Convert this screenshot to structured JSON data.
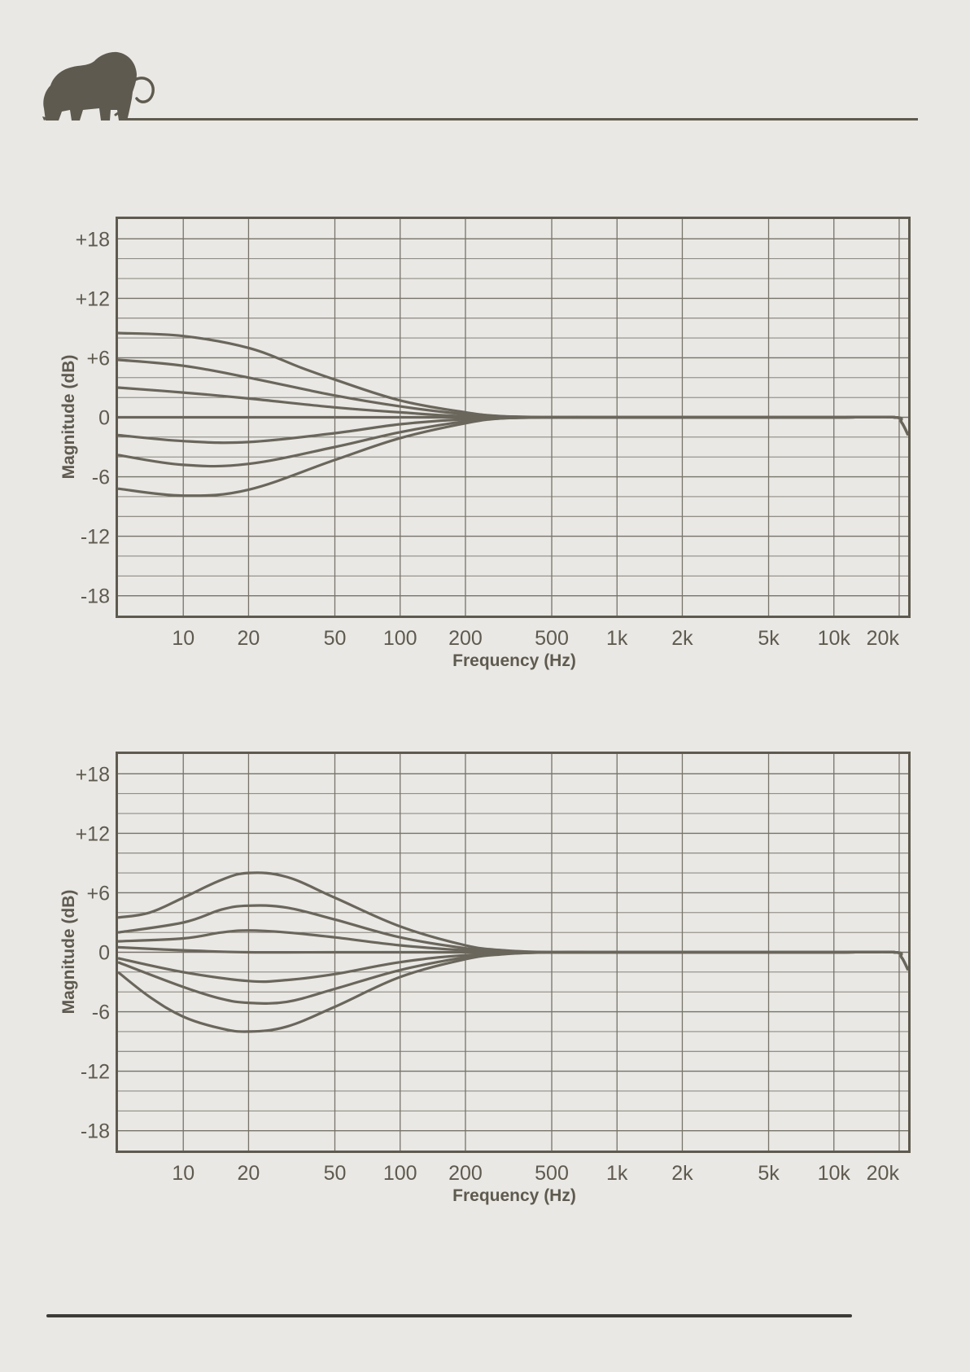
{
  "colors": {
    "ink": "#5f5a4f",
    "paper": "#e9e8e4",
    "grid": "#77736a",
    "curve": "#6a665c"
  },
  "logo": {
    "icon": "mammoth-icon"
  },
  "chart_data": [
    {
      "type": "line",
      "xscale": "log",
      "xlabel": "Frequency (Hz)",
      "ylabel": "Magnitude (dB)",
      "xlim": [
        5,
        22000
      ],
      "ylim": [
        -20,
        20
      ],
      "xticks": [
        10,
        20,
        50,
        100,
        200,
        500,
        1000,
        2000,
        5000,
        10000,
        20000
      ],
      "xtick_labels": [
        "10",
        "20",
        "50",
        "100",
        "200",
        "500",
        "1k",
        "2k",
        "5k",
        "10k",
        "20k"
      ],
      "yticks": [
        18,
        12,
        6,
        0,
        -6,
        -12,
        -18
      ],
      "ytick_labels": [
        "+18",
        "+12",
        "+6",
        "0",
        "-6",
        "-12",
        "-18"
      ],
      "grid": true,
      "series": [
        {
          "x": [
            5,
            10,
            20,
            35,
            50,
            100,
            200,
            300,
            500,
            1000,
            10000,
            19000,
            20500,
            22000
          ],
          "values": [
            8.5,
            8.2,
            7.0,
            5.0,
            3.8,
            1.7,
            0.5,
            0.1,
            0,
            0,
            0,
            0,
            -0.5,
            -1.8
          ]
        },
        {
          "x": [
            5,
            10,
            20,
            50,
            100,
            200,
            300,
            500,
            1000,
            10000,
            19000,
            20500,
            22000
          ],
          "values": [
            5.8,
            5.2,
            4.0,
            2.2,
            1.1,
            0.3,
            0.1,
            0,
            0,
            0,
            0,
            -0.5,
            -1.8
          ]
        },
        {
          "x": [
            5,
            10,
            20,
            50,
            100,
            200,
            500,
            1000,
            10000,
            19000,
            20500,
            22000
          ],
          "values": [
            3.0,
            2.5,
            1.9,
            1.0,
            0.5,
            0.1,
            0,
            0,
            0,
            0,
            -0.5,
            -1.8
          ]
        },
        {
          "x": [
            5,
            1000,
            10000,
            19000,
            20500,
            22000
          ],
          "values": [
            0,
            0,
            0,
            0,
            -0.5,
            -1.8
          ]
        },
        {
          "x": [
            5,
            10,
            20,
            50,
            100,
            200,
            500,
            1000,
            10000,
            19000,
            20500,
            22000
          ],
          "values": [
            -1.8,
            -2.4,
            -2.5,
            -1.6,
            -0.7,
            -0.2,
            0,
            0,
            0,
            0,
            -0.5,
            -1.8
          ]
        },
        {
          "x": [
            5,
            10,
            20,
            50,
            100,
            200,
            300,
            500,
            1000,
            10000,
            19000,
            20500,
            22000
          ],
          "values": [
            -3.8,
            -4.8,
            -4.7,
            -3.0,
            -1.5,
            -0.4,
            -0.1,
            0,
            0,
            0,
            0,
            -0.5,
            -1.8
          ]
        },
        {
          "x": [
            5,
            10,
            20,
            50,
            100,
            200,
            300,
            500,
            1000,
            10000,
            19000,
            20500,
            22000
          ],
          "values": [
            -7.2,
            -7.9,
            -7.3,
            -4.3,
            -2.1,
            -0.6,
            -0.1,
            0,
            0,
            0,
            0,
            -0.5,
            -1.8
          ]
        }
      ]
    },
    {
      "type": "line",
      "xscale": "log",
      "xlabel": "Frequency (Hz)",
      "ylabel": "Magnitude (dB)",
      "xlim": [
        5,
        22000
      ],
      "ylim": [
        -20,
        20
      ],
      "xticks": [
        10,
        20,
        50,
        100,
        200,
        500,
        1000,
        2000,
        5000,
        10000,
        20000
      ],
      "xtick_labels": [
        "10",
        "20",
        "50",
        "100",
        "200",
        "500",
        "1k",
        "2k",
        "5k",
        "10k",
        "20k"
      ],
      "yticks": [
        18,
        12,
        6,
        0,
        -6,
        -12,
        -18
      ],
      "ytick_labels": [
        "+18",
        "+12",
        "+6",
        "0",
        "-6",
        "-12",
        "-18"
      ],
      "grid": true,
      "series": [
        {
          "x": [
            5,
            7,
            10,
            15,
            20,
            30,
            50,
            100,
            200,
            300,
            500,
            1000,
            10000,
            19000,
            20500,
            22000
          ],
          "values": [
            3.5,
            4.0,
            5.5,
            7.3,
            8.0,
            7.6,
            5.5,
            2.6,
            0.7,
            0.2,
            0,
            0,
            0,
            0,
            -0.5,
            -1.8
          ]
        },
        {
          "x": [
            5,
            10,
            15,
            20,
            30,
            50,
            100,
            200,
            300,
            500,
            1000,
            10000,
            19000,
            20500,
            22000
          ],
          "values": [
            2.0,
            3.0,
            4.3,
            4.7,
            4.5,
            3.3,
            1.5,
            0.4,
            0.1,
            0,
            0,
            0,
            0,
            -0.5,
            -1.8
          ]
        },
        {
          "x": [
            5,
            10,
            15,
            20,
            30,
            50,
            100,
            200,
            500,
            1000,
            10000,
            19000,
            20500,
            22000
          ],
          "values": [
            1.1,
            1.4,
            2.0,
            2.2,
            2.0,
            1.5,
            0.7,
            0.2,
            0,
            0,
            0,
            0,
            -0.5,
            -1.8
          ]
        },
        {
          "x": [
            5,
            10,
            20,
            50,
            100,
            200,
            500,
            1000,
            10000,
            19000,
            20500,
            22000
          ],
          "values": [
            0.5,
            0.2,
            0,
            0,
            0,
            0,
            0,
            0,
            0,
            0,
            -0.5,
            -1.8
          ]
        },
        {
          "x": [
            5,
            10,
            20,
            30,
            50,
            100,
            200,
            500,
            1000,
            10000,
            19000,
            20500,
            22000
          ],
          "values": [
            -0.6,
            -2.0,
            -2.9,
            -2.8,
            -2.2,
            -1.0,
            -0.3,
            0,
            0,
            0,
            0,
            -0.5,
            -1.8
          ]
        },
        {
          "x": [
            5,
            10,
            15,
            20,
            30,
            50,
            100,
            200,
            300,
            500,
            1000,
            10000,
            19000,
            20500,
            22000
          ],
          "values": [
            -1.0,
            -3.5,
            -4.7,
            -5.1,
            -5.0,
            -3.7,
            -1.8,
            -0.5,
            -0.1,
            0,
            0,
            0,
            0,
            -0.5,
            -1.8
          ]
        },
        {
          "x": [
            5,
            7,
            10,
            15,
            20,
            30,
            50,
            100,
            200,
            300,
            500,
            1000,
            10000,
            19000,
            20500,
            22000
          ],
          "values": [
            -2.0,
            -4.5,
            -6.5,
            -7.7,
            -8.0,
            -7.5,
            -5.5,
            -2.5,
            -0.7,
            -0.2,
            0,
            0,
            0,
            0,
            -0.5,
            -1.8
          ]
        }
      ]
    }
  ]
}
